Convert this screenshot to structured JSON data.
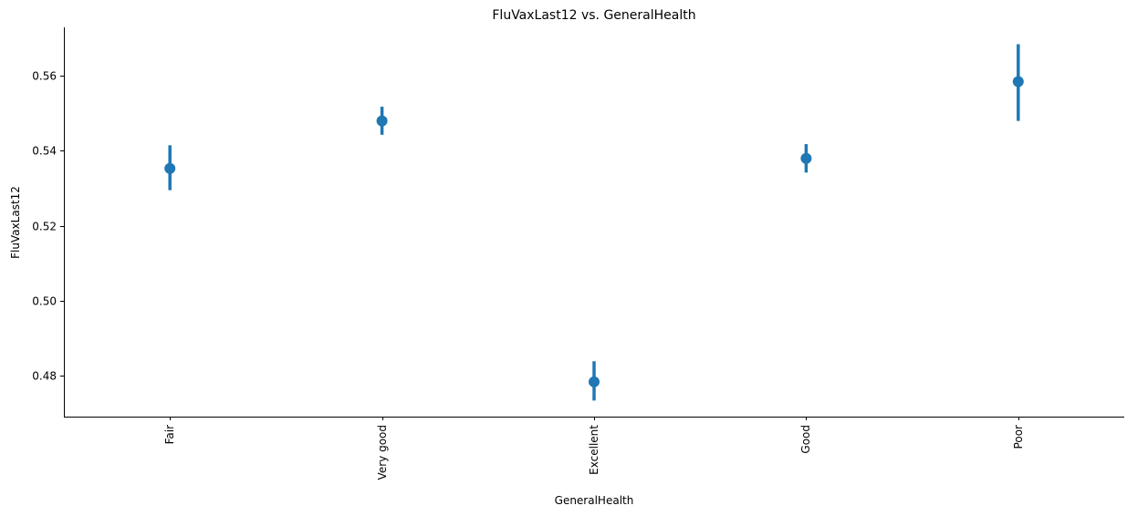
{
  "chart_data": {
    "type": "scatter",
    "subtype": "pointplot-with-error-bars",
    "title": "FluVaxLast12 vs. GeneralHealth",
    "xlabel": "GeneralHealth",
    "ylabel": "FluVaxLast12",
    "categories": [
      "Fair",
      "Very good",
      "Excellent",
      "Good",
      "Poor"
    ],
    "values": [
      0.5353,
      0.548,
      0.4783,
      0.538,
      0.5585
    ],
    "error_low": [
      0.5295,
      0.5443,
      0.4733,
      0.5342,
      0.548
    ],
    "error_high": [
      0.5415,
      0.5518,
      0.4838,
      0.5418,
      0.5685
    ],
    "ylim": [
      0.469,
      0.573
    ],
    "yticks": [
      0.48,
      0.5,
      0.52,
      0.54,
      0.56
    ],
    "ytick_labels": [
      "0.48",
      "0.50",
      "0.52",
      "0.54",
      "0.56"
    ],
    "grid": false,
    "legend": "none",
    "color": "#1f77b4"
  }
}
